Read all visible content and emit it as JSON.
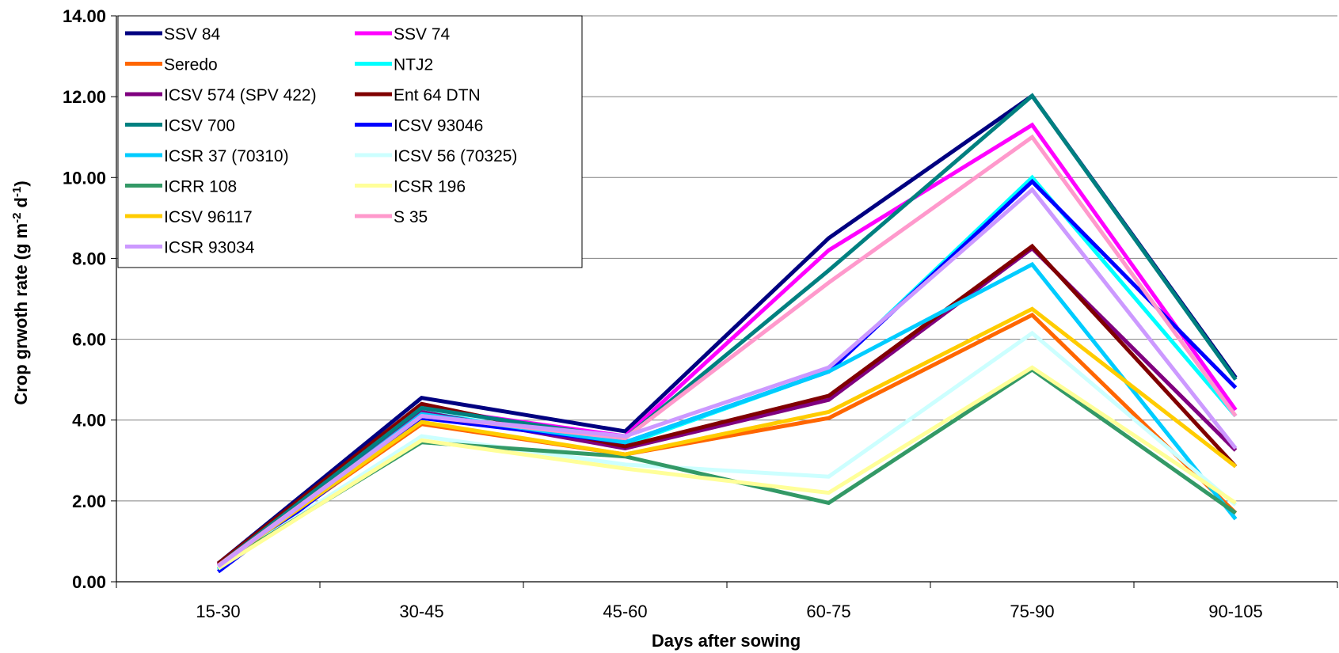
{
  "chart_data": {
    "type": "line",
    "title": "",
    "xlabel": "Days after sowing",
    "ylabel_main": "Crop grwoth rate (g m",
    "ylabel_sup1": "-2",
    "ylabel_mid": " d",
    "ylabel_sup2": "-1",
    "ylabel_end": ")",
    "categories": [
      "15-30",
      "30-45",
      "45-60",
      "60-75",
      "75-90",
      "90-105"
    ],
    "ylim": [
      0,
      14
    ],
    "yticks": [
      "0.00",
      "2.00",
      "4.00",
      "6.00",
      "8.00",
      "10.00",
      "12.00",
      "14.00"
    ],
    "grid": "horizontal",
    "legend_position": "top-left",
    "series": [
      {
        "name": "SSV 84",
        "color": "#000080",
        "values": [
          0.45,
          4.55,
          3.72,
          8.5,
          12.02,
          5.05
        ]
      },
      {
        "name": "SSV 74",
        "color": "#ff00ff",
        "values": [
          0.42,
          4.3,
          3.6,
          8.2,
          11.3,
          4.25
        ]
      },
      {
        "name": "Seredo",
        "color": "#ff6600",
        "values": [
          0.4,
          3.9,
          3.15,
          4.05,
          6.6,
          1.7
        ]
      },
      {
        "name": "NTJ2",
        "color": "#00ffff",
        "values": [
          0.3,
          4.2,
          3.4,
          5.2,
          10.0,
          4.1
        ]
      },
      {
        "name": "ICSV 574 (SPV 422)",
        "color": "#800080",
        "values": [
          0.42,
          4.2,
          3.3,
          4.5,
          8.25,
          3.25
        ]
      },
      {
        "name": "Ent 64 DTN",
        "color": "#800000",
        "values": [
          0.45,
          4.4,
          3.35,
          4.6,
          8.3,
          2.85
        ]
      },
      {
        "name": "ICSV 700",
        "color": "#008080",
        "values": [
          0.4,
          4.3,
          3.55,
          7.7,
          12.02,
          5.0
        ]
      },
      {
        "name": "ICSV 93046",
        "color": "#0000ff",
        "values": [
          0.25,
          4.05,
          3.45,
          5.2,
          9.9,
          4.8
        ]
      },
      {
        "name": "ICSR 37 (70310)",
        "color": "#00ccff",
        "values": [
          0.32,
          4.15,
          3.45,
          5.2,
          7.85,
          1.55
        ]
      },
      {
        "name": "ICSV 56 (70325)",
        "color": "#ccffff",
        "values": [
          0.35,
          3.6,
          2.9,
          2.6,
          6.15,
          1.9
        ]
      },
      {
        "name": "ICRR 108",
        "color": "#339966",
        "values": [
          0.38,
          3.45,
          3.1,
          1.95,
          5.25,
          1.7
        ]
      },
      {
        "name": "ICSR 196",
        "color": "#ffff99",
        "values": [
          0.33,
          3.5,
          2.8,
          2.2,
          5.3,
          1.95
        ]
      },
      {
        "name": "ICSV 96117",
        "color": "#ffcc00",
        "values": [
          0.4,
          3.95,
          3.15,
          4.2,
          6.75,
          2.85
        ]
      },
      {
        "name": "S 35",
        "color": "#ff99cc",
        "values": [
          0.4,
          4.1,
          3.55,
          7.4,
          11.0,
          4.1
        ]
      },
      {
        "name": "ICSR 93034",
        "color": "#cc99ff",
        "values": [
          0.38,
          4.1,
          3.6,
          5.3,
          9.7,
          3.3
        ]
      }
    ]
  }
}
